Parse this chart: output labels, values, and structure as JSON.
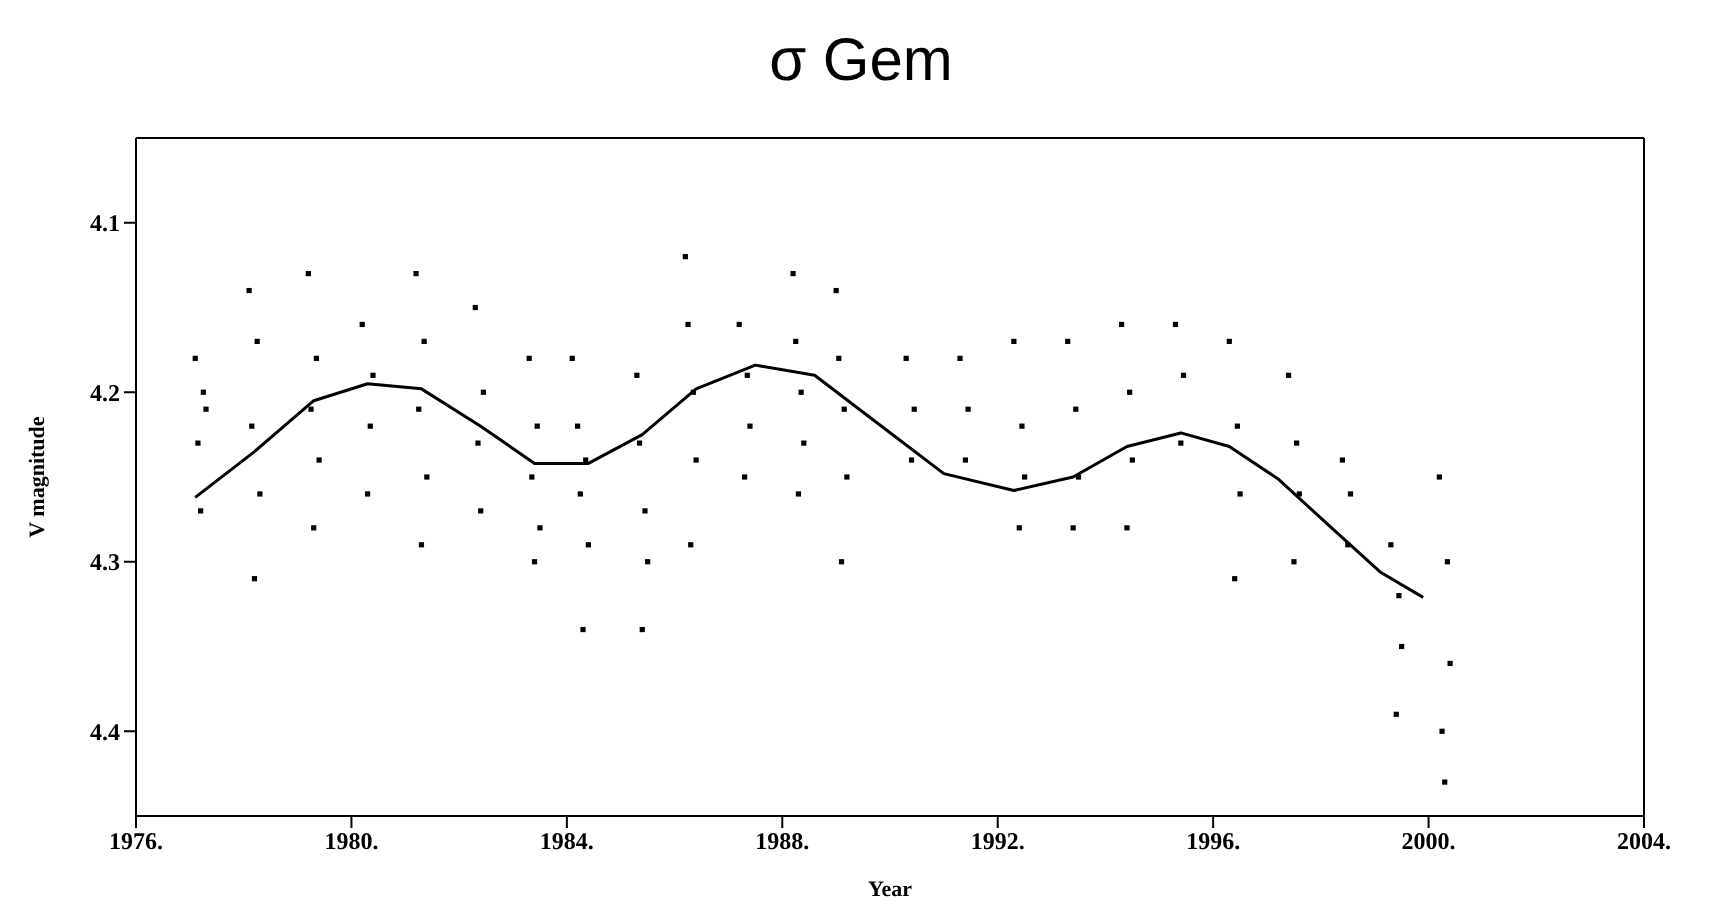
{
  "chart_data": {
    "type": "scatter",
    "title": "σ Gem",
    "xlabel": "Year",
    "ylabel": "V magnitude",
    "xlim": [
      1976,
      2004
    ],
    "ylim": [
      4.45,
      4.05
    ],
    "xticks": [
      {
        "value": 1976,
        "label": "1976."
      },
      {
        "value": 1980,
        "label": "1980."
      },
      {
        "value": 1984,
        "label": "1984."
      },
      {
        "value": 1988,
        "label": "1988."
      },
      {
        "value": 1992,
        "label": "1992."
      },
      {
        "value": 1996,
        "label": "1996."
      },
      {
        "value": 2000,
        "label": "2000."
      },
      {
        "value": 2004,
        "label": "2004."
      }
    ],
    "yticks": [
      4.1,
      4.2,
      4.3,
      4.4
    ],
    "marker": "square",
    "series": [
      {
        "color": "#000000",
        "x": [
          1977.1,
          1977.2,
          1977.3,
          1977.15,
          1977.25,
          1978.1,
          1978.2,
          1978.25,
          1978.15,
          1978.3,
          1979.2,
          1979.3,
          1979.35,
          1979.25,
          1979.4,
          1980.2,
          1980.3,
          1980.4,
          1980.35,
          1981.2,
          1981.3,
          1981.35,
          1981.25,
          1981.4,
          1982.3,
          1982.4,
          1982.45,
          1982.35,
          1983.3,
          1983.4,
          1983.45,
          1983.35,
          1983.5,
          1984.1,
          1984.3,
          1984.2,
          1984.25,
          1984.4,
          1984.35,
          1985.3,
          1985.4,
          1985.35,
          1985.45,
          1985.5,
          1986.2,
          1986.3,
          1986.25,
          1986.35,
          1986.4,
          1987.2,
          1987.3,
          1987.35,
          1987.4,
          1988.2,
          1988.3,
          1988.25,
          1988.35,
          1988.4,
          1989.0,
          1989.1,
          1989.05,
          1989.15,
          1989.2,
          1990.3,
          1990.4,
          1990.45,
          1991.3,
          1991.4,
          1991.45,
          1992.3,
          1992.4,
          1992.45,
          1992.5,
          1993.3,
          1993.4,
          1993.45,
          1993.5,
          1994.3,
          1994.4,
          1994.45,
          1994.5,
          1995.3,
          1995.4,
          1995.45,
          1996.3,
          1996.4,
          1996.45,
          1996.5,
          1997.4,
          1997.5,
          1997.55,
          1997.6,
          1998.4,
          1998.5,
          1998.55,
          1999.3,
          1999.4,
          1999.45,
          1999.5,
          2000.2,
          2000.3,
          2000.35,
          2000.4,
          2000.25
        ],
        "values": [
          4.18,
          4.27,
          4.21,
          4.23,
          4.2,
          4.14,
          4.31,
          4.17,
          4.22,
          4.26,
          4.13,
          4.28,
          4.18,
          4.21,
          4.24,
          4.16,
          4.26,
          4.19,
          4.22,
          4.13,
          4.29,
          4.17,
          4.21,
          4.25,
          4.15,
          4.27,
          4.2,
          4.23,
          4.18,
          4.3,
          4.22,
          4.25,
          4.28,
          4.18,
          4.34,
          4.22,
          4.26,
          4.29,
          4.24,
          4.19,
          4.34,
          4.23,
          4.27,
          4.3,
          4.12,
          4.29,
          4.16,
          4.2,
          4.24,
          4.16,
          4.25,
          4.19,
          4.22,
          4.13,
          4.26,
          4.17,
          4.2,
          4.23,
          4.14,
          4.3,
          4.18,
          4.21,
          4.25,
          4.18,
          4.24,
          4.21,
          4.18,
          4.24,
          4.21,
          4.17,
          4.28,
          4.22,
          4.25,
          4.17,
          4.28,
          4.21,
          4.25,
          4.16,
          4.28,
          4.2,
          4.24,
          4.16,
          4.23,
          4.19,
          4.17,
          4.31,
          4.22,
          4.26,
          4.19,
          4.3,
          4.23,
          4.26,
          4.24,
          4.29,
          4.26,
          4.29,
          4.39,
          4.32,
          4.35,
          4.25,
          4.43,
          4.3,
          4.36,
          4.4
        ]
      },
      {
        "type": "line",
        "color": "#000000",
        "marker": "none",
        "line_style": "solid",
        "x": [
          1977.1,
          1978.2,
          1979.3,
          1980.3,
          1981.3,
          1982.4,
          1983.4,
          1984.4,
          1985.4,
          1986.4,
          1987.5,
          1988.6,
          1989.8,
          1991.0,
          1992.3,
          1993.4,
          1994.4,
          1995.4,
          1996.3,
          1997.2,
          1998.2,
          1999.1,
          1999.9
        ],
        "values": [
          4.262,
          4.235,
          4.205,
          4.195,
          4.198,
          4.22,
          4.242,
          4.242,
          4.225,
          4.198,
          4.184,
          4.19,
          4.219,
          4.248,
          4.258,
          4.25,
          4.232,
          4.224,
          4.232,
          4.251,
          4.28,
          4.306,
          4.321
        ]
      }
    ]
  }
}
